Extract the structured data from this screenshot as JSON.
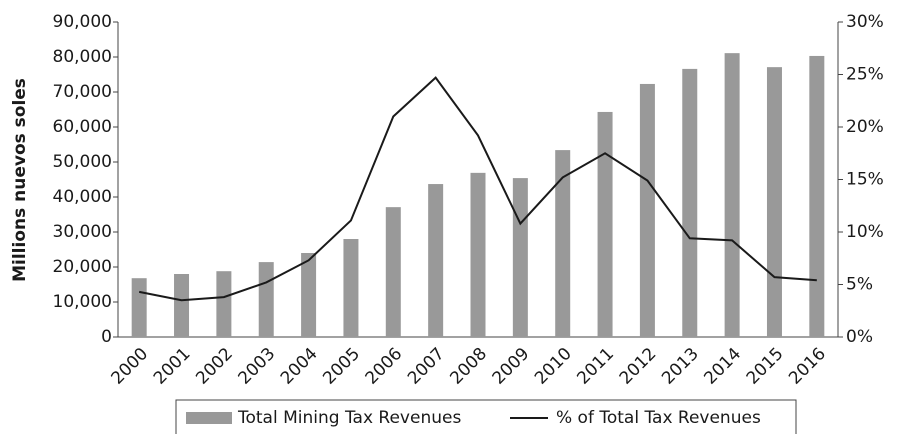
{
  "chart_data": {
    "type": "bar_line",
    "y_label": "Millions nuevos soles",
    "categories": [
      "2000",
      "2001",
      "2002",
      "2003",
      "2004",
      "2005",
      "2006",
      "2007",
      "2008",
      "2009",
      "2010",
      "2011",
      "2012",
      "2013",
      "2014",
      "2015",
      "2016"
    ],
    "series": [
      {
        "name": "Total Mining Tax Revenues",
        "type": "bar",
        "color": "#999999",
        "axis": "y",
        "values": [
          16800,
          18000,
          18800,
          21400,
          24000,
          28000,
          37100,
          43700,
          46900,
          45400,
          53400,
          64300,
          72300,
          76600,
          81100,
          77100,
          80300
        ]
      },
      {
        "name": "% of Total Tax Revenues",
        "type": "line",
        "color": "#1a1a1a",
        "axis": "y2",
        "values": [
          4.3,
          3.5,
          3.8,
          5.2,
          7.3,
          11.1,
          21.0,
          24.7,
          19.2,
          10.8,
          15.2,
          17.5,
          14.9,
          9.4,
          9.2,
          5.7,
          5.4
        ]
      }
    ],
    "ylim": [
      0,
      90000
    ],
    "yticks": [
      0,
      {
        "value": 10000,
        "label": "10,000"
      },
      {
        "value": 20000,
        "label": "20,000"
      },
      {
        "value": 30000,
        "label": "30,000"
      },
      {
        "value": 40000,
        "label": "40,000"
      },
      {
        "value": 50000,
        "label": "50,000"
      },
      {
        "value": 60000,
        "label": "60,000"
      },
      {
        "value": 70000,
        "label": "70,000"
      },
      {
        "value": 80000,
        "label": "80,000"
      },
      {
        "value": 90000,
        "label": "90,000"
      }
    ],
    "y2lim": [
      0,
      30
    ],
    "y2ticks": [
      {
        "value": 0,
        "label": "0%"
      },
      {
        "value": 5,
        "label": "5%"
      },
      {
        "value": 10,
        "label": "10%"
      },
      {
        "value": 15,
        "label": "15%"
      },
      {
        "value": 20,
        "label": "20%"
      },
      {
        "value": 25,
        "label": "25%"
      },
      {
        "value": 30,
        "label": "30%"
      }
    ],
    "legend": "bottom"
  }
}
